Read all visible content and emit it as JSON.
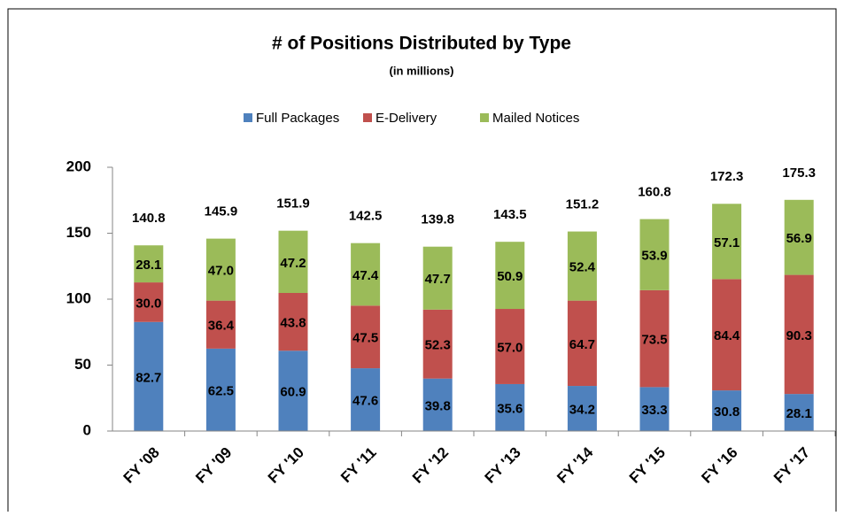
{
  "chart_data": {
    "type": "stacked_bar",
    "title": "# of Positions Distributed by Type",
    "subtitle": "(in millions)",
    "categories": [
      "FY '08",
      "FY '09",
      "FY '10",
      "FY '11",
      "FY '12",
      "FY '13",
      "FY '14",
      "FY '15",
      "FY '16",
      "FY '17"
    ],
    "series": [
      {
        "name": "Full Packages",
        "color": "#4f81bd",
        "values": [
          82.7,
          62.5,
          60.9,
          47.6,
          39.8,
          35.6,
          34.2,
          33.3,
          30.8,
          28.1
        ],
        "value_labels": [
          "82.7",
          "62.5",
          "60.9",
          "47.6",
          "39.8",
          "35.6",
          "34.2",
          "33.3",
          "30.8",
          "28.1"
        ]
      },
      {
        "name": "E-Delivery",
        "color": "#c0504d",
        "values": [
          30.0,
          36.4,
          43.8,
          47.5,
          52.3,
          57.0,
          64.7,
          73.5,
          84.4,
          90.3
        ],
        "value_labels": [
          "30.0",
          "36.4",
          "43.8",
          "47.5",
          "52.3",
          "57.0",
          "64.7",
          "73.5",
          "84.4",
          "90.3"
        ]
      },
      {
        "name": "Mailed Notices",
        "color": "#9bbb59",
        "values": [
          28.1,
          47.0,
          47.2,
          47.4,
          47.7,
          50.9,
          52.4,
          53.9,
          57.1,
          56.9
        ],
        "value_labels": [
          "28.1",
          "47.0",
          "47.2",
          "47.4",
          "47.7",
          "50.9",
          "52.4",
          "53.9",
          "57.1",
          "56.9"
        ]
      }
    ],
    "totals": [
      140.8,
      145.9,
      151.9,
      142.5,
      139.8,
      143.5,
      151.2,
      160.8,
      172.3,
      175.3
    ],
    "ylim": [
      0,
      200
    ],
    "yticks": [
      0,
      50,
      100,
      150,
      200
    ],
    "legend": "top"
  }
}
